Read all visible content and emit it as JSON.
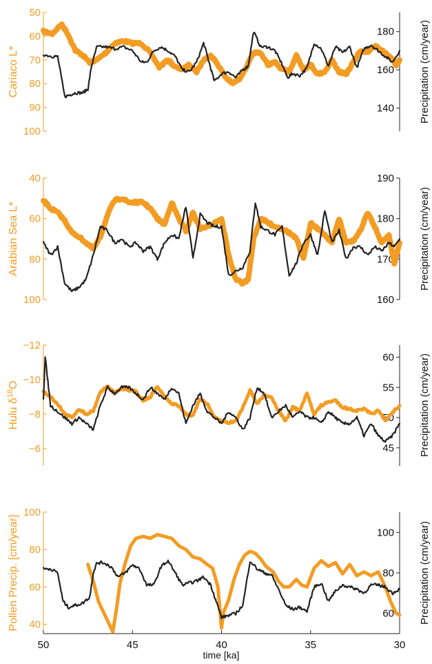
{
  "colors": {
    "orange": "#f39c23",
    "black": "#222222"
  },
  "chart_data": {
    "type": "line",
    "xlabel": "time [ka]",
    "x_ticks": [
      "50",
      "45",
      "40",
      "35",
      "30"
    ],
    "xlim": [
      50,
      30
    ],
    "x_reversed": true,
    "panels": [
      {
        "left_label": "Cariaco L*",
        "right_label": "Precipitation (cm/year)",
        "left_ticks": [
          "50",
          "60",
          "70",
          "80",
          "90",
          "100"
        ],
        "left_lim": [
          50,
          100
        ],
        "left_reversed": true,
        "right_ticks": [
          "140",
          "160",
          "180"
        ],
        "right_lim": [
          128,
          190
        ],
        "series": [
          {
            "color": "#f39c23",
            "x": [
              50,
              49.5,
              49,
              48.7,
              48.2,
              47.8,
              47.4,
              47,
              46.5,
              46,
              45.5,
              45,
              44.5,
              44,
              43.5,
              43,
              42.6,
              42.2,
              41.8,
              41.4,
              41,
              40.6,
              40.2,
              39.8,
              39.4,
              39,
              38.6,
              38.2,
              37.8,
              37.4,
              37,
              36.6,
              36.2,
              35.8,
              35.4,
              35,
              34.6,
              34.2,
              33.8,
              33.4,
              33,
              32.6,
              32.2,
              31.8,
              31.4,
              31,
              30.6,
              30.2,
              30
            ],
            "y": [
              58,
              59,
              55,
              58,
              66,
              68,
              71,
              70,
              67,
              63,
              62,
              63,
              63,
              67,
              73,
              70,
              73,
              74,
              72,
              75,
              70,
              68,
              72,
              77,
              80,
              78,
              73,
              67,
              67,
              72,
              71,
              74,
              75,
              68,
              74,
              72,
              76,
              75,
              70,
              75,
              76,
              71,
              66,
              67,
              64,
              66,
              68,
              72,
              70
            ]
          },
          {
            "color": "#222222",
            "x": [
              50,
              49.5,
              49.2,
              48.8,
              48.5,
              48.2,
              47.8,
              47.5,
              47.3,
              47,
              46.5,
              46,
              45.5,
              45,
              44.5,
              44.2,
              43.8,
              43.4,
              43,
              42.6,
              42.2,
              41.8,
              41.4,
              41,
              40.7,
              40.4,
              40,
              39.6,
              39.2,
              38.8,
              38.5,
              38.2,
              37.8,
              37.4,
              37,
              36.6,
              36.3,
              36,
              35.6,
              35.2,
              34.8,
              34.4,
              34,
              33.6,
              33.2,
              32.8,
              32.4,
              32,
              31.6,
              31.2,
              30.8,
              30.4,
              30
            ],
            "y": [
              168,
              167,
              167,
              146,
              147,
              148,
              148,
              150,
              162,
              172,
              172,
              171,
              172,
              170,
              164,
              164,
              170,
              172,
              170,
              167,
              160,
              159,
              164,
              174,
              164,
              154,
              158,
              159,
              156,
              160,
              162,
              180,
              172,
              172,
              170,
              163,
              156,
              158,
              157,
              161,
              174,
              171,
              162,
              172,
              169,
              172,
              161,
              171,
              173,
              170,
              167,
              164,
              170
            ]
          }
        ]
      },
      {
        "left_label": "Arabian Sea L*",
        "right_label": "Precipitation (cm/year)",
        "left_ticks": [
          "40",
          "60",
          "80",
          "100"
        ],
        "left_lim": [
          40,
          100
        ],
        "left_reversed": true,
        "right_ticks": [
          "160",
          "170",
          "180",
          "190"
        ],
        "right_lim": [
          160,
          190
        ],
        "series": [
          {
            "color": "#f39c23",
            "x": [
              50,
              49.6,
              49.2,
              48.8,
              48.4,
              48,
              47.6,
              47.2,
              46.8,
              46.4,
              46,
              45.6,
              45.2,
              44.8,
              44.4,
              44,
              43.6,
              43.2,
              42.8,
              42.4,
              42,
              41.6,
              41.2,
              40.8,
              40.4,
              40,
              39.6,
              39.2,
              38.8,
              38.5,
              38.2,
              37.8,
              37.4,
              37,
              36.6,
              36.2,
              35.8,
              35.4,
              35,
              34.6,
              34.2,
              33.8,
              33.4,
              33,
              32.6,
              32.2,
              31.8,
              31.4,
              31,
              30.6,
              30.3,
              30
            ],
            "y": [
              51,
              55,
              57,
              61,
              67,
              69,
              72,
              75,
              69,
              58,
              51,
              50,
              52,
              52,
              52,
              55,
              60,
              63,
              52,
              60,
              66,
              57,
              65,
              64,
              62,
              60,
              78,
              90,
              92,
              90,
              70,
              60,
              62,
              64,
              65,
              67,
              70,
              80,
              62,
              65,
              68,
              72,
              60,
              72,
              71,
              66,
              57,
              64,
              72,
              68,
              82,
              72
            ]
          },
          {
            "color": "#222222",
            "x": [
              50,
              49.6,
              49.2,
              48.8,
              48.4,
              48,
              47.6,
              47.2,
              46.8,
              46.4,
              46,
              45.6,
              45.2,
              44.8,
              44.4,
              44,
              43.6,
              43.2,
              42.8,
              42.4,
              42,
              41.6,
              41.2,
              40.8,
              40.4,
              40,
              39.6,
              39.2,
              38.8,
              38.4,
              38.1,
              37.8,
              37.4,
              37,
              36.6,
              36.2,
              35.8,
              35.4,
              35,
              34.6,
              34.2,
              33.8,
              33.4,
              33,
              32.6,
              32.2,
              31.8,
              31.4,
              31,
              30.6,
              30.3,
              30
            ],
            "y": [
              174,
              171,
              173,
              164,
              162,
              163,
              165,
              171,
              178,
              177,
              174,
              175,
              173,
              174,
              172,
              173,
              170,
              174,
              176,
              175,
              183,
              170,
              181,
              179,
              178,
              178,
              166,
              167,
              168,
              172,
              184,
              178,
              177,
              176,
              178,
              166,
              169,
              174,
              176,
              171,
              182,
              174,
              177,
              170,
              173,
              173,
              171,
              173,
              172,
              174,
              173,
              175
            ]
          }
        ]
      },
      {
        "left_label": "Hulu δ18O",
        "left_label_base": "Hulu δ",
        "left_label_sup": "18",
        "left_label_tail": "O",
        "right_label": "Precipitation (cm/year)",
        "left_ticks": [
          "−12",
          "−10",
          "−8",
          "−6"
        ],
        "left_lim": [
          -12,
          -5
        ],
        "left_reversed": true,
        "right_ticks": [
          "45",
          "50",
          "55",
          "60"
        ],
        "right_lim": [
          42,
          62
        ],
        "series": [
          {
            "color": "#f39c23",
            "x": [
              50,
              49.6,
              49.2,
              48.8,
              48.4,
              48,
              47.6,
              47.2,
              46.8,
              46.4,
              46,
              45.6,
              45.2,
              44.8,
              44.4,
              44,
              43.6,
              43.2,
              42.8,
              42.4,
              42,
              41.6,
              41.2,
              40.8,
              40.4,
              40,
              39.6,
              39.2,
              38.8,
              38.4,
              38,
              37.6,
              37.2,
              36.8,
              36.4,
              36,
              35.6,
              35.2,
              34.8,
              34.4,
              34,
              33.6,
              33.2,
              32.8,
              32.4,
              32,
              31.6,
              31.2,
              30.8,
              30.4,
              30
            ],
            "y": [
              -9.3,
              -9.0,
              -8.6,
              -8.0,
              -7.8,
              -8.3,
              -8.0,
              -8.2,
              -9.3,
              -9.6,
              -9.2,
              -9.5,
              -9.4,
              -9.3,
              -8.8,
              -9.0,
              -9.6,
              -9.0,
              -8.6,
              -8.5,
              -8.0,
              -7.9,
              -8.9,
              -8.6,
              -7.8,
              -7.6,
              -7.5,
              -7.6,
              -8.4,
              -9.4,
              -8.6,
              -9.1,
              -9.0,
              -8.2,
              -7.6,
              -8.4,
              -8.2,
              -9.2,
              -8.0,
              -8.5,
              -8.7,
              -8.8,
              -8.4,
              -8.3,
              -8.2,
              -8.3,
              -8.0,
              -8.2,
              -7.6,
              -8.1,
              -8.5
            ]
          },
          {
            "color": "#222222",
            "x": [
              50,
              49.9,
              49.6,
              49.2,
              48.8,
              48.4,
              48,
              47.6,
              47.2,
              46.8,
              46.4,
              46,
              45.6,
              45.2,
              44.8,
              44.4,
              44,
              43.6,
              43.2,
              42.8,
              42.4,
              42,
              41.6,
              41.2,
              40.8,
              40.4,
              40,
              39.6,
              39.2,
              38.8,
              38.4,
              38,
              37.6,
              37.2,
              36.8,
              36.4,
              36,
              35.6,
              35.2,
              34.8,
              34.4,
              34,
              33.6,
              33.2,
              32.8,
              32.4,
              32,
              31.6,
              31.2,
              30.8,
              30.4,
              30
            ],
            "y": [
              53,
              60,
              52,
              51,
              50,
              49,
              50,
              49,
              48,
              52,
              55,
              54,
              55,
              55,
              54,
              53,
              55,
              54,
              53,
              55,
              54,
              49,
              52,
              54,
              51,
              50,
              49,
              51,
              50,
              48,
              50,
              55,
              54,
              50,
              51,
              52,
              50,
              51,
              50,
              50,
              49,
              51,
              50,
              49,
              49,
              50,
              47,
              49,
              47,
              46,
              47,
              49
            ]
          }
        ]
      },
      {
        "left_label": "Pollen Precip. [cm/year]",
        "right_label": "Precipitation (cm/year)",
        "left_ticks": [
          "40",
          "60",
          "80",
          "100"
        ],
        "left_lim": [
          35,
          100
        ],
        "left_reversed": false,
        "right_ticks": [
          "60",
          "80",
          "100"
        ],
        "right_lim": [
          50,
          110
        ],
        "series": [
          {
            "color": "#f39c23",
            "x": [
              47.5,
              47.2,
              46.9,
              46.6,
              46.3,
              46.1,
              45.9,
              45.7,
              45.4,
              45.1,
              44.8,
              44.4,
              44,
              43.6,
              43.2,
              42.8,
              42.4,
              42,
              41.6,
              41.2,
              40.8,
              40.5,
              40.2,
              40,
              39.9,
              39.6,
              39.3,
              39,
              38.7,
              38.4,
              38.1,
              37.8,
              37.5,
              37.1,
              36.8,
              36.5,
              36.2,
              35.8,
              35.5,
              35.2,
              34.8,
              34.4,
              34,
              33.6,
              33.2,
              32.8,
              32.4,
              32,
              31.6,
              31.2,
              30.8,
              30.5,
              30.2,
              30
            ],
            "y": [
              72,
              63,
              52,
              46,
              40,
              36,
              48,
              62,
              73,
              82,
              86,
              87,
              86,
              88,
              87,
              86,
              82,
              80,
              76,
              75,
              72,
              70,
              60,
              38,
              46,
              53,
              64,
              72,
              77,
              79,
              78,
              75,
              71,
              68,
              63,
              60,
              60,
              64,
              61,
              60,
              70,
              74,
              71,
              73,
              67,
              72,
              66,
              68,
              66,
              68,
              60,
              52,
              46,
              45
            ]
          },
          {
            "color": "#222222",
            "x": [
              50,
              49.6,
              49.2,
              48.9,
              48.6,
              48.2,
              47.8,
              47.4,
              47.2,
              47,
              46.6,
              46.2,
              45.8,
              45.4,
              45,
              44.6,
              44.2,
              43.8,
              43.4,
              43,
              42.6,
              42.2,
              41.8,
              41.4,
              41,
              40.6,
              40.3,
              40,
              39.6,
              39.2,
              38.8,
              38.4,
              38,
              37.6,
              37.2,
              36.8,
              36.4,
              36,
              35.6,
              35.2,
              34.8,
              34.4,
              34,
              33.6,
              33.2,
              32.8,
              32.4,
              32,
              31.6,
              31.2,
              30.8,
              30.4,
              30
            ],
            "y": [
              82,
              82,
              80,
              66,
              63,
              64,
              65,
              68,
              80,
              85,
              85,
              83,
              78,
              80,
              84,
              82,
              74,
              74,
              83,
              86,
              80,
              74,
              75,
              76,
              78,
              74,
              66,
              58,
              59,
              60,
              64,
              86,
              82,
              80,
              79,
              72,
              64,
              62,
              63,
              61,
              73,
              75,
              66,
              71,
              74,
              73,
              72,
              70,
              74,
              74,
              73,
              70,
              72
            ]
          }
        ]
      }
    ]
  }
}
